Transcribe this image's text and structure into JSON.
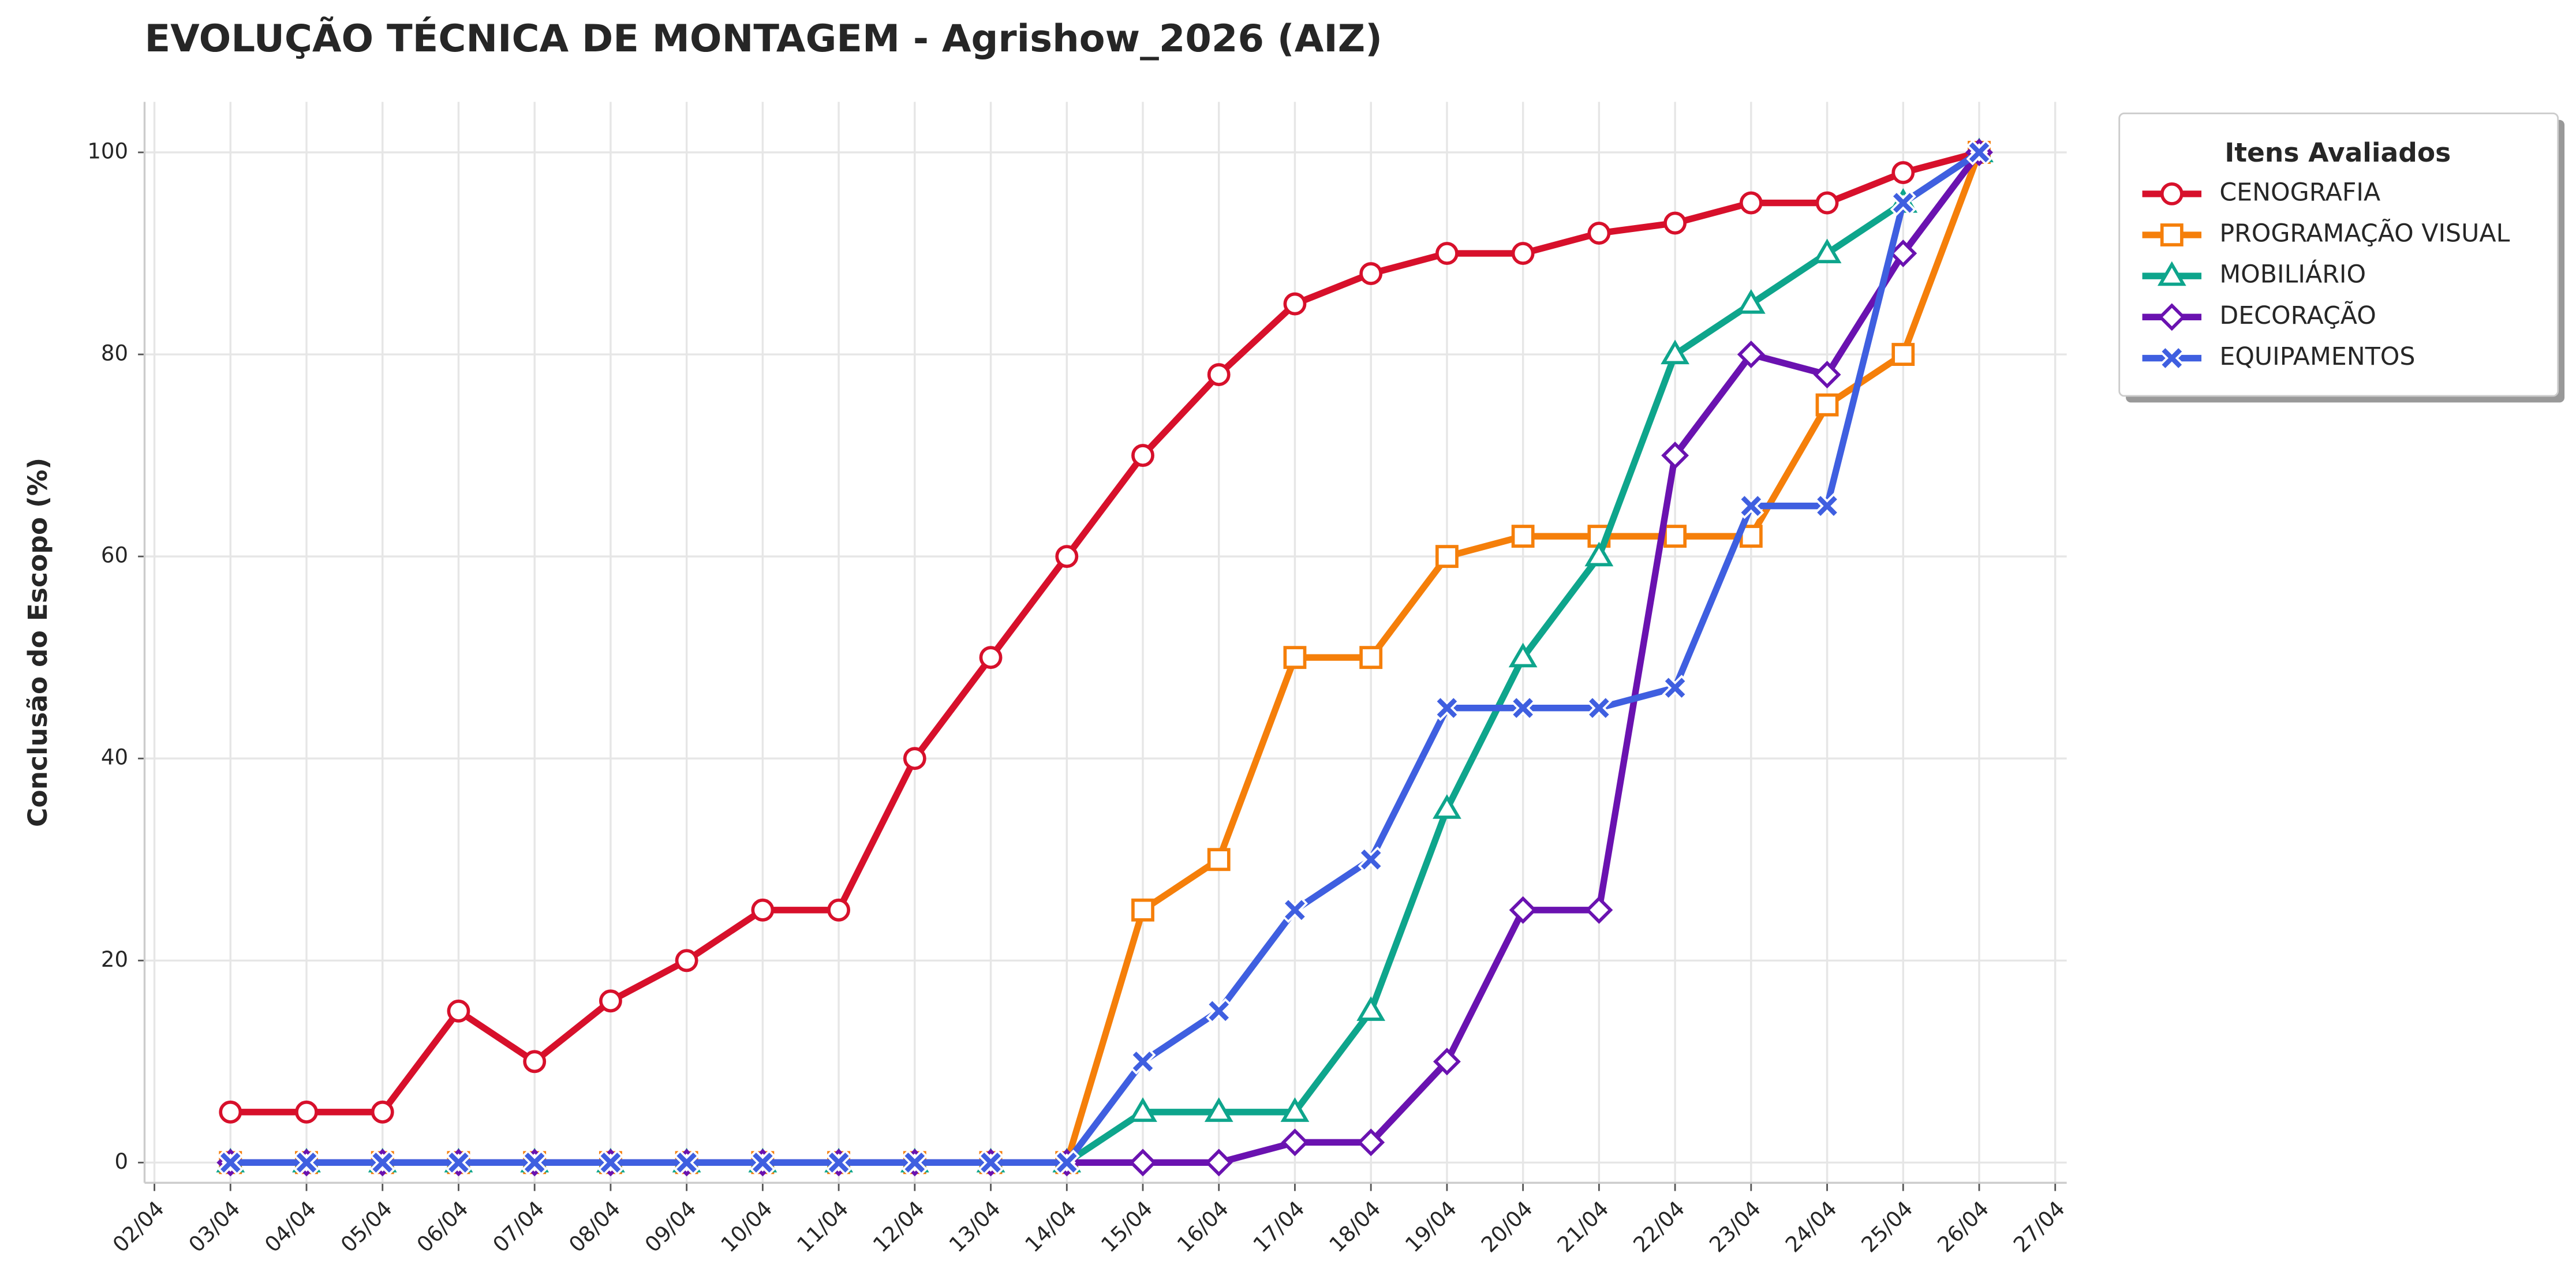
{
  "chart_data": {
    "type": "line",
    "title": "EVOLUÇÃO TÉCNICA DE MONTAGEM - Agrishow_2026 (AIZ)",
    "y_label": "Conclusão do Escopo (%)",
    "legend_title": "Itens Avaliados",
    "legend_position": "outside upper right",
    "grid": true,
    "x": [
      "02/04",
      "03/04",
      "04/04",
      "05/04",
      "06/04",
      "07/04",
      "08/04",
      "09/04",
      "10/04",
      "11/04",
      "12/04",
      "13/04",
      "14/04",
      "15/04",
      "16/04",
      "17/04",
      "18/04",
      "19/04",
      "20/04",
      "21/04",
      "22/04",
      "23/04",
      "24/04",
      "25/04",
      "26/04",
      "27/04"
    ],
    "ylim": [
      -2,
      105
    ],
    "yticks": [
      0,
      20,
      40,
      60,
      80,
      100
    ],
    "series": [
      {
        "name": "CENOGRAFIA",
        "color": "#d7102b",
        "marker": "circle",
        "values": [
          null,
          5,
          5,
          5,
          15,
          10,
          16,
          20,
          25,
          25,
          40,
          50,
          60,
          70,
          78,
          85,
          88,
          90,
          90,
          92,
          93,
          95,
          95,
          98,
          100,
          null
        ]
      },
      {
        "name": "PROGRAMAÇÃO VISUAL",
        "color": "#f57f0a",
        "marker": "square",
        "values": [
          null,
          0,
          0,
          0,
          0,
          0,
          0,
          0,
          0,
          0,
          0,
          0,
          0,
          25,
          30,
          50,
          50,
          60,
          62,
          62,
          62,
          62,
          75,
          80,
          100,
          null
        ]
      },
      {
        "name": "MOBILIÁRIO",
        "color": "#0ea58c",
        "marker": "triangle",
        "values": [
          null,
          0,
          0,
          0,
          0,
          0,
          0,
          0,
          0,
          0,
          0,
          0,
          0,
          5,
          5,
          5,
          15,
          35,
          50,
          60,
          80,
          85,
          90,
          95,
          100,
          null
        ]
      },
      {
        "name": "DECORAÇÃO",
        "color": "#6a12b0",
        "marker": "diamond",
        "values": [
          null,
          0,
          0,
          0,
          0,
          0,
          0,
          0,
          0,
          0,
          0,
          0,
          0,
          0,
          0,
          2,
          2,
          10,
          25,
          25,
          70,
          80,
          78,
          90,
          100,
          null
        ]
      },
      {
        "name": "EQUIPAMENTOS",
        "color": "#3f5fe0",
        "marker": "x",
        "values": [
          null,
          0,
          0,
          0,
          0,
          0,
          0,
          0,
          0,
          0,
          0,
          0,
          0,
          10,
          15,
          25,
          30,
          45,
          45,
          45,
          47,
          65,
          65,
          95,
          100,
          null
        ]
      }
    ]
  }
}
